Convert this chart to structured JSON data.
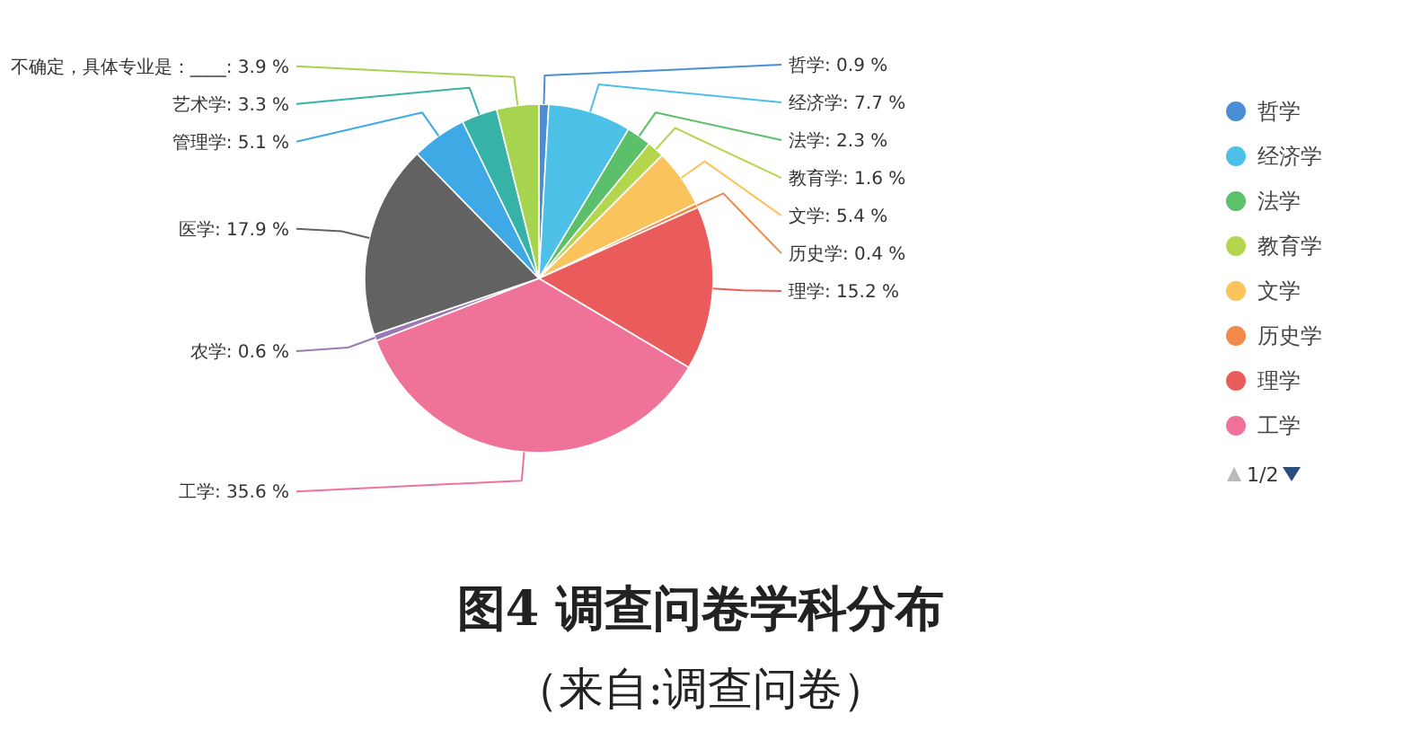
{
  "chart_data": {
    "type": "pie",
    "title": "图4 调查问卷学科分布",
    "subtitle": "（来自:调查问卷）",
    "categories": [
      "哲学",
      "经济学",
      "法学",
      "教育学",
      "文学",
      "历史学",
      "理学",
      "工学",
      "农学",
      "医学",
      "管理学",
      "艺术学",
      "不确定，具体专业是：____"
    ],
    "values": [
      0.9,
      7.7,
      2.3,
      1.6,
      5.4,
      0.4,
      15.2,
      35.6,
      0.6,
      17.9,
      5.1,
      3.3,
      3.9
    ],
    "value_labels": [
      ": 0.9 %",
      ": 7.7 %",
      ": 2.3 %",
      ": 1.6 %",
      ": 5.4 %",
      ": 0.4 %",
      ": 15.2 %",
      ": 35.6 %",
      ": 0.6 %",
      ": 17.9 %",
      ": 5.1 %",
      ": 3.3 %",
      ": 3.9 %"
    ],
    "colors": [
      "#4a8fd6",
      "#4cc0e6",
      "#5cbf6a",
      "#b3d64c",
      "#fbc35c",
      "#f08a4b",
      "#ea5c5c",
      "#ef7398",
      "#9a7ab4",
      "#626262",
      "#3fa9e6",
      "#37b2a6",
      "#a6d44e"
    ],
    "legend": "right",
    "annotations": [
      "1/2"
    ]
  }
}
